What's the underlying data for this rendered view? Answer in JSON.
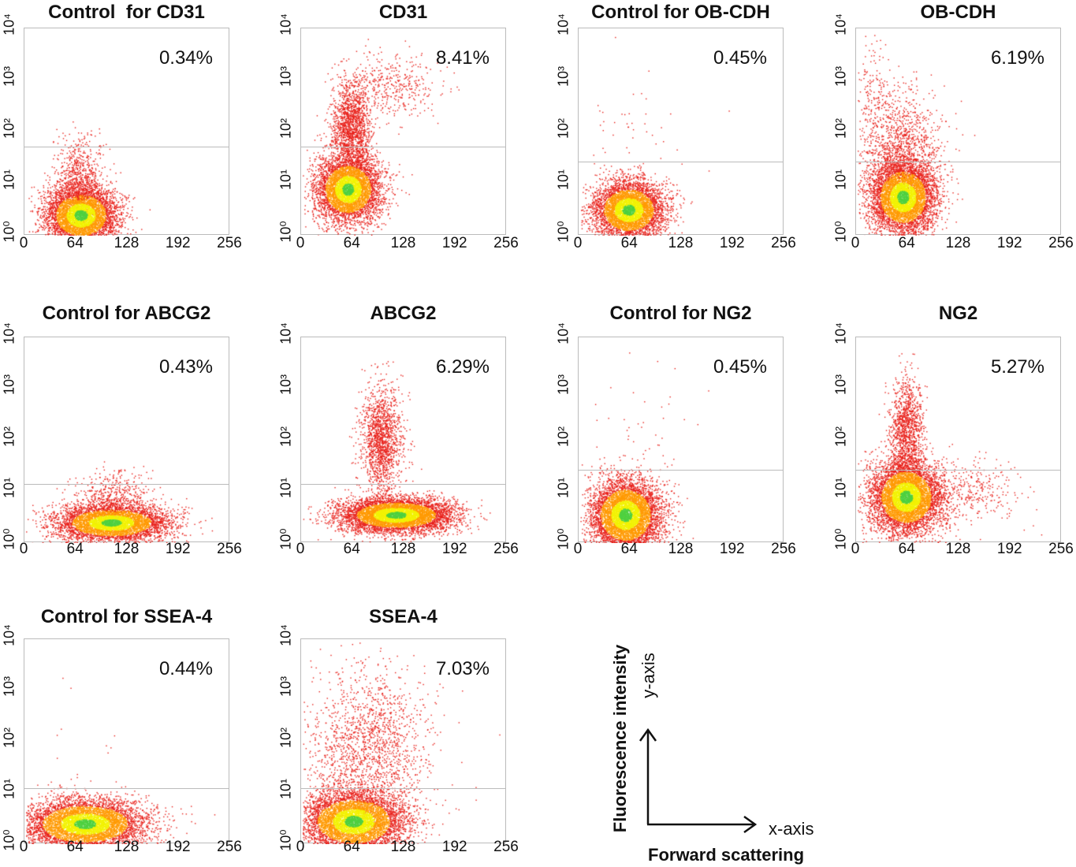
{
  "chart_data": [
    {
      "type": "scatter",
      "title": "Control  for CD31",
      "percent_label": "0.34%",
      "x_ticks": [
        "0",
        "64",
        "128",
        "192",
        "256"
      ],
      "y_ticks": [
        "10⁰",
        "10¹",
        "10²",
        "10³",
        "10⁴"
      ],
      "xlim": [
        0,
        256
      ],
      "ylim_log10": [
        0,
        4
      ],
      "gate_log10": 1.72,
      "populations": [
        {
          "x": 70,
          "log_y": 0.4,
          "sx": 22,
          "sy": 0.28,
          "n": 5000
        },
        {
          "x": 68,
          "log_y": 1.1,
          "sx": 14,
          "sy": 0.4,
          "n": 700
        }
      ]
    },
    {
      "type": "scatter",
      "title": "CD31",
      "percent_label": "8.41%",
      "x_ticks": [
        "0",
        "64",
        "128",
        "192",
        "256"
      ],
      "y_ticks": [
        "10⁰",
        "10¹",
        "10²",
        "10³",
        "10⁴"
      ],
      "xlim": [
        0,
        256
      ],
      "ylim_log10": [
        0,
        4
      ],
      "gate_log10": 1.72,
      "populations": [
        {
          "x": 58,
          "log_y": 0.9,
          "sx": 20,
          "sy": 0.32,
          "n": 5000
        },
        {
          "x": 62,
          "log_y": 2.1,
          "sx": 12,
          "sy": 0.45,
          "n": 1600
        },
        {
          "x": 110,
          "log_y": 2.9,
          "sx": 30,
          "sy": 0.3,
          "n": 400
        }
      ]
    },
    {
      "type": "scatter",
      "title": "Control for OB-CDH",
      "percent_label": "0.45%",
      "x_ticks": [
        "0",
        "64",
        "128",
        "192",
        "256"
      ],
      "y_ticks": [
        "10⁰",
        "10¹",
        "10²",
        "10³",
        "10⁴"
      ],
      "xlim": [
        0,
        256
      ],
      "ylim_log10": [
        0,
        4
      ],
      "gate_log10": 1.43,
      "populations": [
        {
          "x": 62,
          "log_y": 0.5,
          "sx": 22,
          "sy": 0.28,
          "n": 5000
        },
        {
          "x": 70,
          "log_y": 1.8,
          "sx": 40,
          "sy": 0.8,
          "n": 60
        }
      ]
    },
    {
      "type": "scatter",
      "title": "OB-CDH",
      "percent_label": "6.19%",
      "x_ticks": [
        "0",
        "64",
        "128",
        "192",
        "256"
      ],
      "y_ticks": [
        "10⁰",
        "10¹",
        "10²",
        "10³",
        "10⁴"
      ],
      "xlim": [
        0,
        256
      ],
      "ylim_log10": [
        0,
        4
      ],
      "gate_log10": 1.43,
      "populations": [
        {
          "x": 58,
          "log_y": 0.75,
          "sx": 20,
          "sy": 0.35,
          "n": 5500
        },
        {
          "x": 55,
          "log_y": 1.7,
          "sx": 25,
          "sy": 0.55,
          "n": 1200
        },
        {
          "x": 20,
          "log_y": 2.8,
          "sx": 10,
          "sy": 0.6,
          "n": 150
        }
      ]
    },
    {
      "type": "scatter",
      "title": "Control for ABCG2",
      "percent_label": "0.43%",
      "x_ticks": [
        "0",
        "64",
        "128",
        "192",
        "256"
      ],
      "y_ticks": [
        "10⁰",
        "10¹",
        "10²",
        "10³",
        "10⁴"
      ],
      "xlim": [
        0,
        256
      ],
      "ylim_log10": [
        0,
        4
      ],
      "gate_log10": 1.15,
      "populations": [
        {
          "x": 108,
          "log_y": 0.4,
          "sx": 35,
          "sy": 0.18,
          "n": 5000
        },
        {
          "x": 110,
          "log_y": 0.9,
          "sx": 25,
          "sy": 0.25,
          "n": 500
        }
      ]
    },
    {
      "type": "scatter",
      "title": "ABCG2",
      "percent_label": "6.29%",
      "x_ticks": [
        "0",
        "64",
        "128",
        "192",
        "256"
      ],
      "y_ticks": [
        "10⁰",
        "10¹",
        "10²",
        "10³",
        "10⁴"
      ],
      "xlim": [
        0,
        256
      ],
      "ylim_log10": [
        0,
        4
      ],
      "gate_log10": 1.15,
      "populations": [
        {
          "x": 118,
          "log_y": 0.55,
          "sx": 35,
          "sy": 0.17,
          "n": 6000
        },
        {
          "x": 100,
          "log_y": 2.0,
          "sx": 13,
          "sy": 0.5,
          "n": 1500
        }
      ]
    },
    {
      "type": "scatter",
      "title": "Control for NG2",
      "percent_label": "0.45%",
      "x_ticks": [
        "0",
        "64",
        "128",
        "192",
        "256"
      ],
      "y_ticks": [
        "10⁰",
        "10¹",
        "10²",
        "10³",
        "10⁴"
      ],
      "xlim": [
        0,
        256
      ],
      "ylim_log10": [
        0,
        4
      ],
      "gate_log10": 1.42,
      "populations": [
        {
          "x": 58,
          "log_y": 0.55,
          "sx": 22,
          "sy": 0.35,
          "n": 6000
        },
        {
          "x": 70,
          "log_y": 2.0,
          "sx": 30,
          "sy": 0.8,
          "n": 50
        }
      ]
    },
    {
      "type": "scatter",
      "title": "NG2",
      "percent_label": "5.27%",
      "x_ticks": [
        "0",
        "64",
        "128",
        "192",
        "256"
      ],
      "y_ticks": [
        "10⁰",
        "10¹",
        "10²",
        "10³",
        "10⁴"
      ],
      "xlim": [
        0,
        256
      ],
      "ylim_log10": [
        0,
        4
      ],
      "gate_log10": 1.42,
      "populations": [
        {
          "x": 62,
          "log_y": 0.9,
          "sx": 22,
          "sy": 0.35,
          "n": 6000
        },
        {
          "x": 62,
          "log_y": 2.2,
          "sx": 10,
          "sy": 0.5,
          "n": 1200
        },
        {
          "x": 150,
          "log_y": 1.0,
          "sx": 30,
          "sy": 0.3,
          "n": 300
        }
      ]
    },
    {
      "type": "scatter",
      "title": "Control for SSEA-4",
      "percent_label": "0.44%",
      "x_ticks": [
        "0",
        "64",
        "128",
        "192",
        "256"
      ],
      "y_ticks": [
        "10⁰",
        "10¹",
        "10²",
        "10³",
        "10⁴"
      ],
      "xlim": [
        0,
        256
      ],
      "ylim_log10": [
        0,
        4
      ],
      "gate_log10": 1.1,
      "populations": [
        {
          "x": 75,
          "log_y": 0.4,
          "sx": 38,
          "sy": 0.25,
          "n": 6000
        },
        {
          "x": 80,
          "log_y": 2.3,
          "sx": 40,
          "sy": 0.8,
          "n": 15
        }
      ]
    },
    {
      "type": "scatter",
      "title": "SSEA-4",
      "percent_label": "7.03%",
      "x_ticks": [
        "0",
        "64",
        "128",
        "192",
        "256"
      ],
      "y_ticks": [
        "10⁰",
        "10¹",
        "10²",
        "10³",
        "10⁴"
      ],
      "xlim": [
        0,
        256
      ],
      "ylim_log10": [
        0,
        4
      ],
      "gate_log10": 1.1,
      "populations": [
        {
          "x": 65,
          "log_y": 0.45,
          "sx": 32,
          "sy": 0.3,
          "n": 6000
        },
        {
          "x": 85,
          "log_y": 1.8,
          "sx": 38,
          "sy": 0.8,
          "n": 1800
        }
      ]
    }
  ],
  "legend": {
    "y_label": "Fluorescence intensity",
    "y_axis": "y-axis",
    "x_axis": "x-axis",
    "x_label": "Forward scattering"
  },
  "colors": {
    "low_density": "#e8201a",
    "mid_density": "#ff9a00",
    "high_density": "#f2f200",
    "peak_density": "#4fd040",
    "gate": "#bbbbbb"
  }
}
